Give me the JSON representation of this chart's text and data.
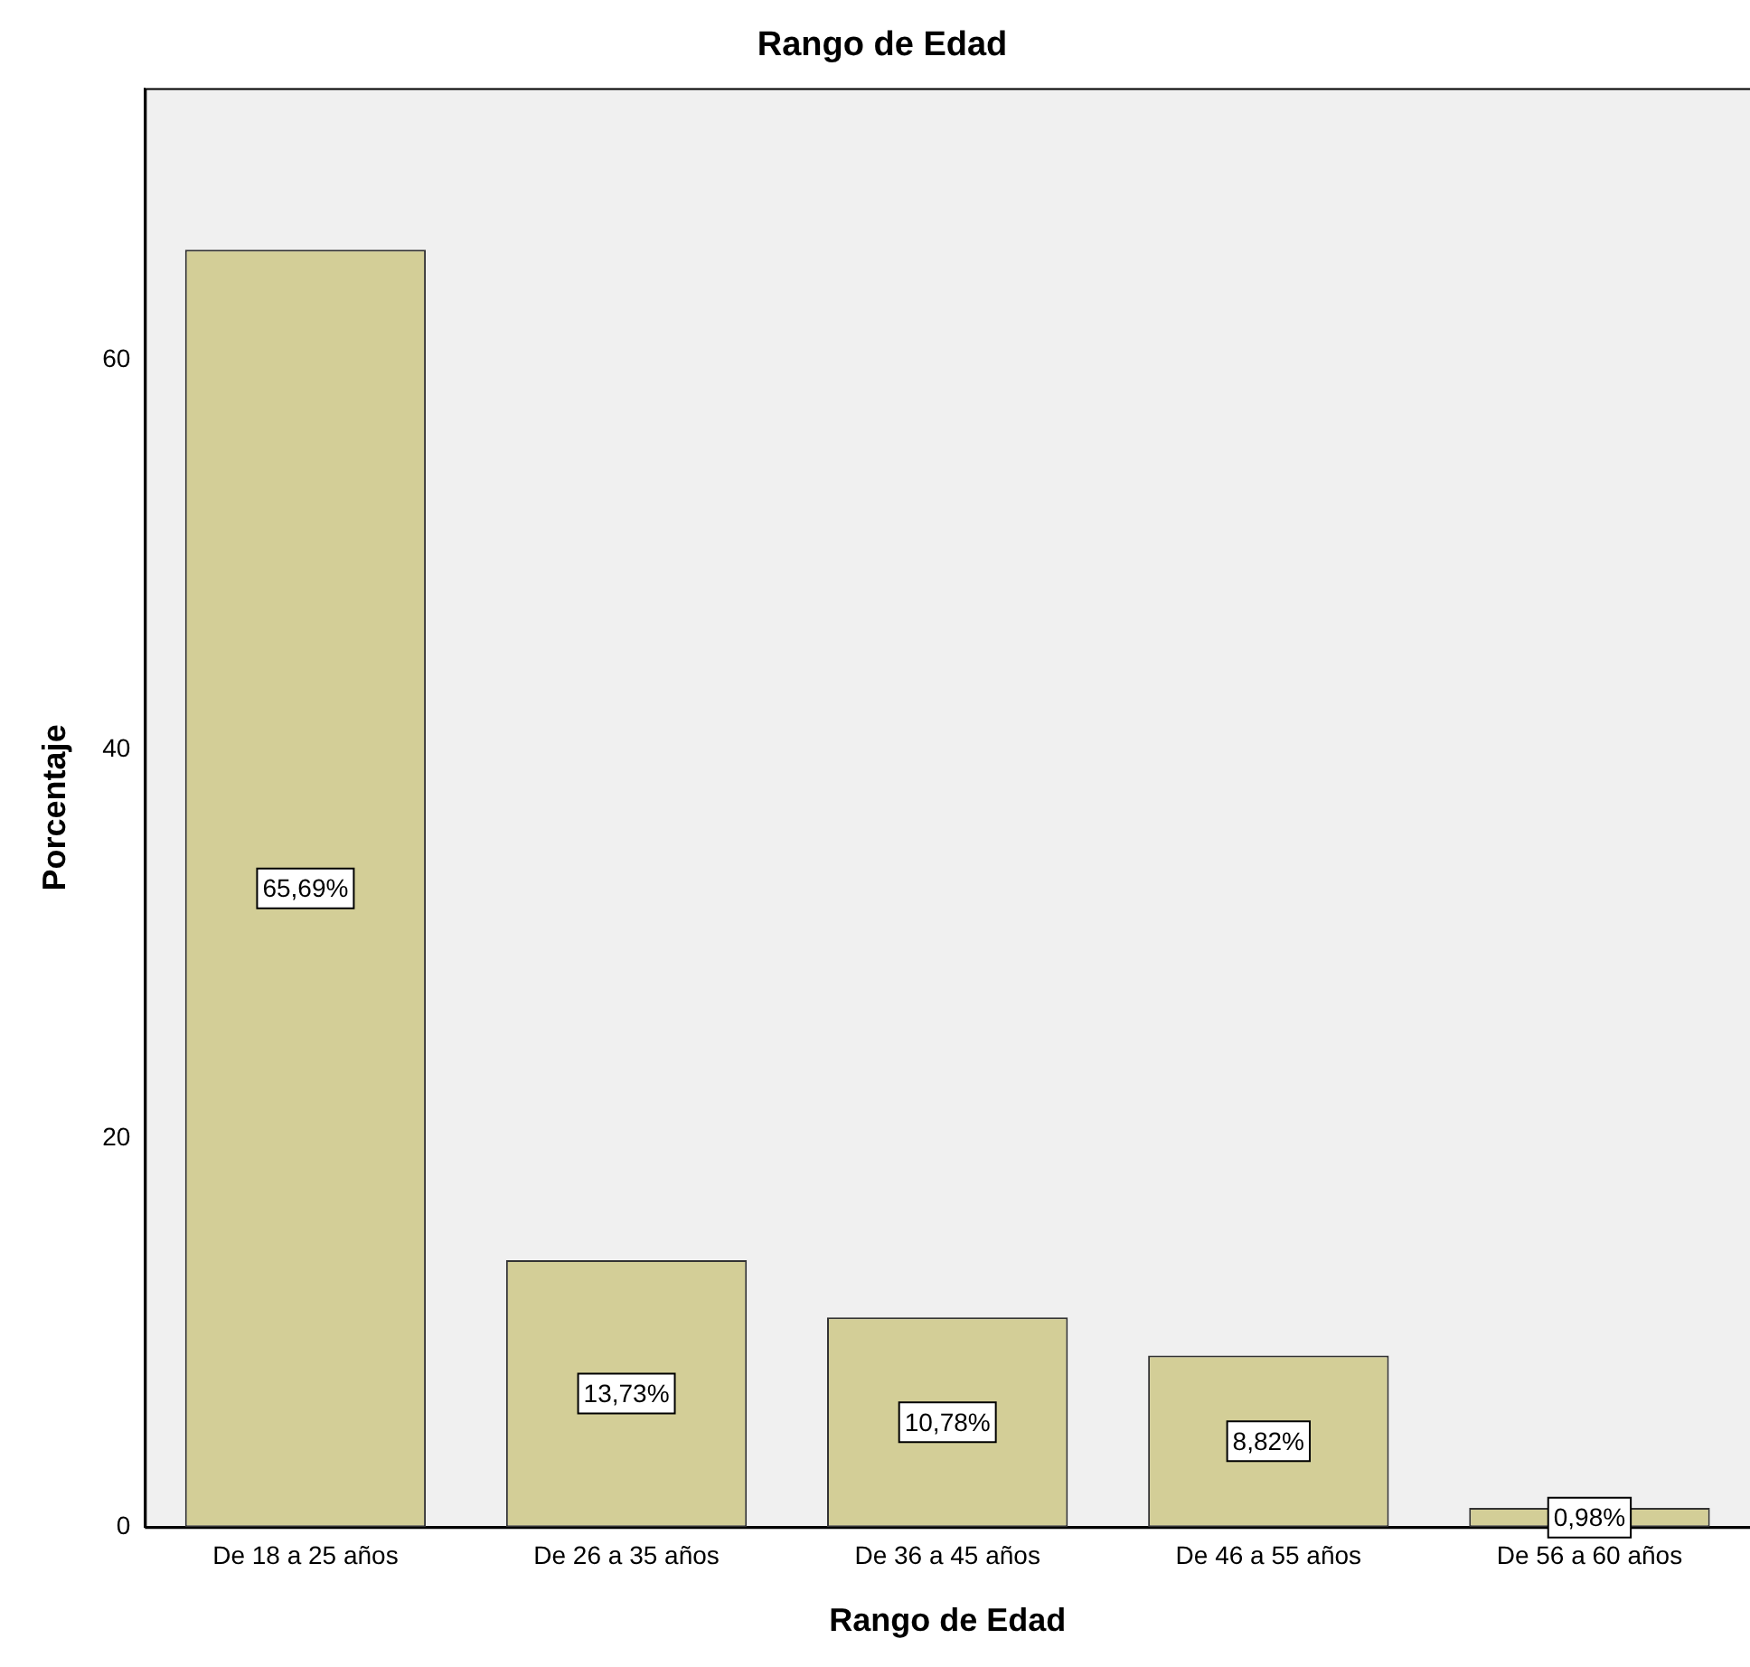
{
  "chart_data": {
    "type": "bar",
    "title": "Rango de Edad",
    "xlabel": "Rango de Edad",
    "ylabel": "Porcentaje",
    "categories": [
      "De 18 a 25 años",
      "De 26 a 35 años",
      "De 36 a 45 años",
      "De 46 a 55 años",
      "De 56 a 60 años"
    ],
    "values": [
      65.69,
      13.73,
      10.78,
      8.82,
      0.98
    ],
    "value_labels": [
      "65,69%",
      "13,73%",
      "10,78%",
      "8,82%",
      "0,98%"
    ],
    "color": "#d3ce97",
    "ylim": [
      0,
      74
    ],
    "yticks": [
      0,
      20,
      40,
      60
    ],
    "grid": false,
    "legend": false
  }
}
